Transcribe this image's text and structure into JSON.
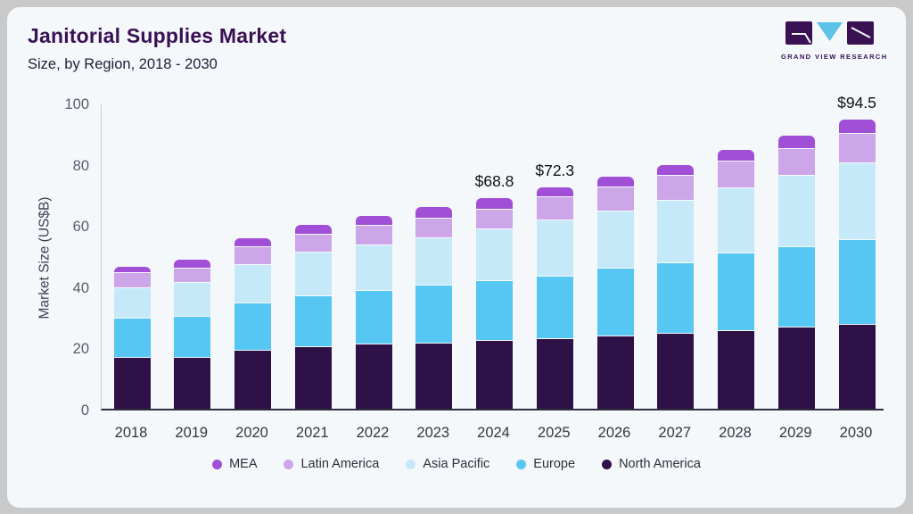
{
  "header": {
    "title": "Janitorial Supplies Market",
    "subtitle": "Size, by Region, 2018 - 2030",
    "logo_text": "GRAND VIEW RESEARCH"
  },
  "colors": {
    "card_bg": "#f4f8fb",
    "outer_bg": "#c9c9c9",
    "title": "#3a1153",
    "logo_dark": "#3a1153",
    "logo_triangle": "#5bc3e8"
  },
  "chart_data": {
    "type": "bar",
    "stacked": true,
    "title": "Janitorial Supplies Market",
    "subtitle": "Size, by Region, 2018 - 2030",
    "xlabel": "",
    "ylabel": "Market Size (US$B)",
    "ylim": [
      0,
      100
    ],
    "yticks": [
      0,
      20,
      40,
      60,
      80,
      100
    ],
    "grid": false,
    "legend_position": "bottom",
    "categories": [
      "2018",
      "2019",
      "2020",
      "2021",
      "2022",
      "2023",
      "2024",
      "2025",
      "2026",
      "2027",
      "2028",
      "2029",
      "2030"
    ],
    "series": [
      {
        "name": "North America",
        "color": "#2e1147",
        "values": [
          16.7,
          16.7,
          19.0,
          20.2,
          20.9,
          21.4,
          22.1,
          22.8,
          23.6,
          24.5,
          25.5,
          26.5,
          27.5
        ]
      },
      {
        "name": "Europe",
        "color": "#56c6f2",
        "values": [
          12.7,
          13.4,
          15.5,
          16.5,
          17.5,
          18.9,
          19.7,
          20.4,
          22.1,
          23.1,
          25.3,
          26.2,
          27.6
        ]
      },
      {
        "name": "Asia Pacific",
        "color": "#c5e9f9",
        "values": [
          9.9,
          10.9,
          12.4,
          14.3,
          14.9,
          15.3,
          16.7,
          18.2,
          18.9,
          20.4,
          21.3,
          23.3,
          25.2
        ]
      },
      {
        "name": "Latin America",
        "color": "#cda5e9",
        "values": [
          4.9,
          4.7,
          5.8,
          5.9,
          6.5,
          6.6,
          6.6,
          7.6,
          7.8,
          8.1,
          8.6,
          8.8,
          9.4
        ]
      },
      {
        "name": "MEA",
        "color": "#a14fd6",
        "values": [
          2.2,
          2.9,
          2.9,
          3.1,
          3.1,
          3.6,
          3.7,
          3.3,
          3.4,
          3.6,
          3.7,
          4.4,
          4.8
        ]
      }
    ],
    "totals": [
      46.4,
      48.6,
      55.6,
      60.0,
      62.9,
      65.8,
      68.8,
      72.3,
      75.8,
      79.7,
      84.4,
      89.2,
      94.5
    ],
    "legend_order": [
      "MEA",
      "Latin America",
      "Asia Pacific",
      "Europe",
      "North America"
    ],
    "annotations": [
      {
        "category": "2024",
        "label": "$68.8"
      },
      {
        "category": "2025",
        "label": "$72.3"
      },
      {
        "category": "2030",
        "label": "$94.5"
      }
    ]
  }
}
